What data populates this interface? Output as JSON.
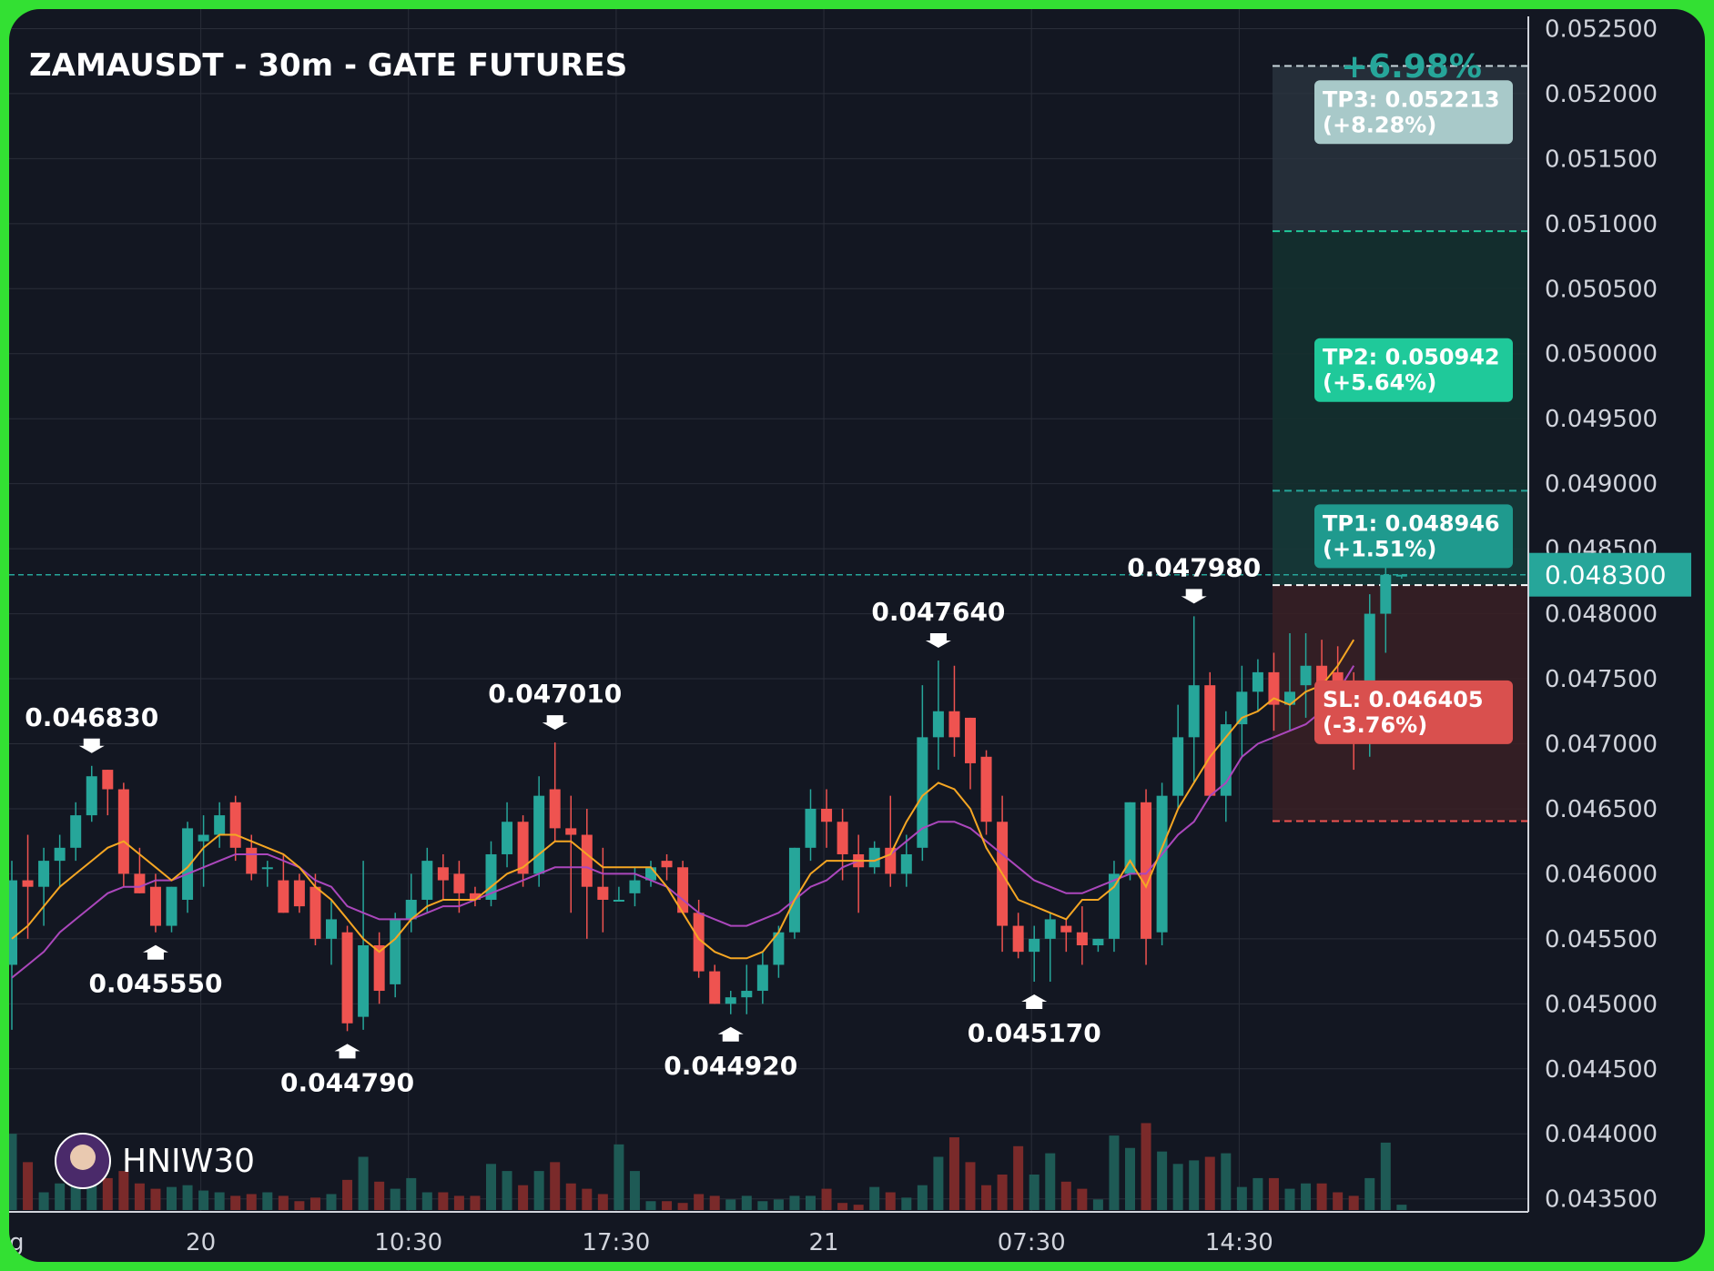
{
  "chart_data": {
    "type": "candlestick",
    "title": "ZAMAUSDT - 30m - GATE FUTURES",
    "ylim": [
      0.0434,
      0.05265
    ],
    "y_ticks": [
      "0.052500",
      "0.052000",
      "0.051500",
      "0.051000",
      "0.050500",
      "0.050000",
      "0.049500",
      "0.049000",
      "0.048500",
      "0.048000",
      "0.047500",
      "0.047000",
      "0.046500",
      "0.046000",
      "0.045500",
      "0.045000",
      "0.044500",
      "0.044000",
      "0.043500"
    ],
    "x_ticks": [
      {
        "label": "20",
        "index": 12
      },
      {
        "label": "10:30",
        "index": 25
      },
      {
        "label": "17:30",
        "index": 38
      },
      {
        "label": "21",
        "index": 51
      },
      {
        "label": "07:30",
        "index": 64
      },
      {
        "label": "14:30",
        "index": 77
      }
    ],
    "x_tick_cut_label": "g",
    "current_price": "0.048300",
    "current_price_value": 0.0483,
    "pct_change": "+6.98%",
    "watermark": "HNIW30",
    "candles": [
      {
        "o": 0.0453,
        "h": 0.0461,
        "l": 0.0448,
        "c": 0.04595,
        "v": 0.43
      },
      {
        "o": 0.04595,
        "h": 0.0463,
        "l": 0.0455,
        "c": 0.0459,
        "v": 0.27
      },
      {
        "o": 0.0459,
        "h": 0.0462,
        "l": 0.0456,
        "c": 0.0461,
        "v": 0.1
      },
      {
        "o": 0.0461,
        "h": 0.0463,
        "l": 0.0459,
        "c": 0.0462,
        "v": 0.15
      },
      {
        "o": 0.0462,
        "h": 0.04655,
        "l": 0.0461,
        "c": 0.04645,
        "v": 0.2
      },
      {
        "o": 0.04645,
        "h": 0.04683,
        "l": 0.0464,
        "c": 0.04675,
        "v": 0.22
      },
      {
        "o": 0.0468,
        "h": 0.0468,
        "l": 0.04645,
        "c": 0.04665,
        "v": 0.18
      },
      {
        "o": 0.04665,
        "h": 0.0467,
        "l": 0.0459,
        "c": 0.046,
        "v": 0.22
      },
      {
        "o": 0.046,
        "h": 0.0462,
        "l": 0.04585,
        "c": 0.04585,
        "v": 0.15
      },
      {
        "o": 0.0459,
        "h": 0.046,
        "l": 0.04555,
        "c": 0.0456,
        "v": 0.12
      },
      {
        "o": 0.0456,
        "h": 0.0459,
        "l": 0.04555,
        "c": 0.0459,
        "v": 0.13
      },
      {
        "o": 0.0458,
        "h": 0.0464,
        "l": 0.0457,
        "c": 0.04635,
        "v": 0.14
      },
      {
        "o": 0.04625,
        "h": 0.04645,
        "l": 0.0459,
        "c": 0.0463,
        "v": 0.11
      },
      {
        "o": 0.0463,
        "h": 0.04655,
        "l": 0.0462,
        "c": 0.04645,
        "v": 0.1
      },
      {
        "o": 0.04655,
        "h": 0.0466,
        "l": 0.0461,
        "c": 0.0462,
        "v": 0.08
      },
      {
        "o": 0.0462,
        "h": 0.0463,
        "l": 0.04595,
        "c": 0.046,
        "v": 0.09
      },
      {
        "o": 0.04605,
        "h": 0.0461,
        "l": 0.0459,
        "c": 0.04605,
        "v": 0.1
      },
      {
        "o": 0.04595,
        "h": 0.04615,
        "l": 0.0457,
        "c": 0.0457,
        "v": 0.08
      },
      {
        "o": 0.04595,
        "h": 0.046,
        "l": 0.0457,
        "c": 0.04575,
        "v": 0.05
      },
      {
        "o": 0.0459,
        "h": 0.046,
        "l": 0.04545,
        "c": 0.0455,
        "v": 0.07
      },
      {
        "o": 0.0455,
        "h": 0.0458,
        "l": 0.0453,
        "c": 0.04565,
        "v": 0.09
      },
      {
        "o": 0.04555,
        "h": 0.0456,
        "l": 0.04479,
        "c": 0.04485,
        "v": 0.17
      },
      {
        "o": 0.0449,
        "h": 0.0461,
        "l": 0.0448,
        "c": 0.04545,
        "v": 0.3
      },
      {
        "o": 0.04545,
        "h": 0.04555,
        "l": 0.045,
        "c": 0.0451,
        "v": 0.16
      },
      {
        "o": 0.04515,
        "h": 0.0457,
        "l": 0.04505,
        "c": 0.04565,
        "v": 0.12
      },
      {
        "o": 0.04565,
        "h": 0.046,
        "l": 0.04555,
        "c": 0.0458,
        "v": 0.18
      },
      {
        "o": 0.0458,
        "h": 0.0462,
        "l": 0.0457,
        "c": 0.0461,
        "v": 0.1
      },
      {
        "o": 0.04605,
        "h": 0.04615,
        "l": 0.0458,
        "c": 0.04595,
        "v": 0.1
      },
      {
        "o": 0.046,
        "h": 0.0461,
        "l": 0.0457,
        "c": 0.04585,
        "v": 0.08
      },
      {
        "o": 0.04585,
        "h": 0.0459,
        "l": 0.04575,
        "c": 0.0458,
        "v": 0.08
      },
      {
        "o": 0.0458,
        "h": 0.04625,
        "l": 0.04575,
        "c": 0.04615,
        "v": 0.26
      },
      {
        "o": 0.04615,
        "h": 0.04655,
        "l": 0.04605,
        "c": 0.0464,
        "v": 0.22
      },
      {
        "o": 0.0464,
        "h": 0.04645,
        "l": 0.0459,
        "c": 0.046,
        "v": 0.14
      },
      {
        "o": 0.046,
        "h": 0.04675,
        "l": 0.0459,
        "c": 0.0466,
        "v": 0.22
      },
      {
        "o": 0.04665,
        "h": 0.04701,
        "l": 0.04625,
        "c": 0.04635,
        "v": 0.27
      },
      {
        "o": 0.04635,
        "h": 0.0466,
        "l": 0.0457,
        "c": 0.0463,
        "v": 0.15
      },
      {
        "o": 0.0463,
        "h": 0.0465,
        "l": 0.0455,
        "c": 0.0459,
        "v": 0.12
      },
      {
        "o": 0.0459,
        "h": 0.0462,
        "l": 0.04555,
        "c": 0.0458,
        "v": 0.09
      },
      {
        "o": 0.0458,
        "h": 0.0459,
        "l": 0.0458,
        "c": 0.0458,
        "v": 0.37
      },
      {
        "o": 0.04585,
        "h": 0.04605,
        "l": 0.04575,
        "c": 0.04595,
        "v": 0.22
      },
      {
        "o": 0.04595,
        "h": 0.0461,
        "l": 0.0459,
        "c": 0.04605,
        "v": 0.05
      },
      {
        "o": 0.0461,
        "h": 0.04615,
        "l": 0.04595,
        "c": 0.04605,
        "v": 0.05
      },
      {
        "o": 0.04605,
        "h": 0.0461,
        "l": 0.0457,
        "c": 0.0457,
        "v": 0.04
      },
      {
        "o": 0.0457,
        "h": 0.0458,
        "l": 0.0452,
        "c": 0.04525,
        "v": 0.09
      },
      {
        "o": 0.04525,
        "h": 0.0453,
        "l": 0.045,
        "c": 0.045,
        "v": 0.08
      },
      {
        "o": 0.045,
        "h": 0.0451,
        "l": 0.04492,
        "c": 0.04505,
        "v": 0.06
      },
      {
        "o": 0.04505,
        "h": 0.0453,
        "l": 0.04492,
        "c": 0.0451,
        "v": 0.08
      },
      {
        "o": 0.0451,
        "h": 0.0454,
        "l": 0.045,
        "c": 0.0453,
        "v": 0.05
      },
      {
        "o": 0.0453,
        "h": 0.0456,
        "l": 0.0452,
        "c": 0.04555,
        "v": 0.06
      },
      {
        "o": 0.04555,
        "h": 0.0462,
        "l": 0.0455,
        "c": 0.0462,
        "v": 0.08
      },
      {
        "o": 0.0462,
        "h": 0.04665,
        "l": 0.0461,
        "c": 0.0465,
        "v": 0.08
      },
      {
        "o": 0.0465,
        "h": 0.04665,
        "l": 0.0462,
        "c": 0.0464,
        "v": 0.12
      },
      {
        "o": 0.0464,
        "h": 0.0465,
        "l": 0.04595,
        "c": 0.04615,
        "v": 0.04
      },
      {
        "o": 0.04615,
        "h": 0.0463,
        "l": 0.0457,
        "c": 0.04605,
        "v": 0.03
      },
      {
        "o": 0.04605,
        "h": 0.04625,
        "l": 0.046,
        "c": 0.0462,
        "v": 0.13
      },
      {
        "o": 0.0462,
        "h": 0.0466,
        "l": 0.0459,
        "c": 0.046,
        "v": 0.1
      },
      {
        "o": 0.046,
        "h": 0.0463,
        "l": 0.0459,
        "c": 0.04615,
        "v": 0.07
      },
      {
        "o": 0.0462,
        "h": 0.04745,
        "l": 0.0461,
        "c": 0.04705,
        "v": 0.14
      },
      {
        "o": 0.04705,
        "h": 0.04764,
        "l": 0.0468,
        "c": 0.04725,
        "v": 0.3
      },
      {
        "o": 0.04725,
        "h": 0.0476,
        "l": 0.0469,
        "c": 0.04705,
        "v": 0.41
      },
      {
        "o": 0.0472,
        "h": 0.0472,
        "l": 0.04665,
        "c": 0.04685,
        "v": 0.27
      },
      {
        "o": 0.0469,
        "h": 0.04695,
        "l": 0.0463,
        "c": 0.0464,
        "v": 0.14
      },
      {
        "o": 0.0464,
        "h": 0.0466,
        "l": 0.0454,
        "c": 0.0456,
        "v": 0.2
      },
      {
        "o": 0.0456,
        "h": 0.0457,
        "l": 0.04535,
        "c": 0.0454,
        "v": 0.36
      },
      {
        "o": 0.0454,
        "h": 0.0456,
        "l": 0.04517,
        "c": 0.0455,
        "v": 0.2
      },
      {
        "o": 0.0455,
        "h": 0.0457,
        "l": 0.04517,
        "c": 0.04565,
        "v": 0.32
      },
      {
        "o": 0.0456,
        "h": 0.04565,
        "l": 0.0454,
        "c": 0.04555,
        "v": 0.16
      },
      {
        "o": 0.04555,
        "h": 0.04575,
        "l": 0.0453,
        "c": 0.04545,
        "v": 0.12
      },
      {
        "o": 0.04545,
        "h": 0.0455,
        "l": 0.0454,
        "c": 0.0455,
        "v": 0.06
      },
      {
        "o": 0.0455,
        "h": 0.0461,
        "l": 0.0454,
        "c": 0.046,
        "v": 0.42
      },
      {
        "o": 0.046,
        "h": 0.04655,
        "l": 0.04595,
        "c": 0.04655,
        "v": 0.35
      },
      {
        "o": 0.04655,
        "h": 0.04665,
        "l": 0.0453,
        "c": 0.0455,
        "v": 0.49
      },
      {
        "o": 0.04555,
        "h": 0.0467,
        "l": 0.04545,
        "c": 0.0466,
        "v": 0.33
      },
      {
        "o": 0.0466,
        "h": 0.0473,
        "l": 0.0465,
        "c": 0.04705,
        "v": 0.26
      },
      {
        "o": 0.04705,
        "h": 0.04798,
        "l": 0.0467,
        "c": 0.04745,
        "v": 0.28
      },
      {
        "o": 0.04745,
        "h": 0.04755,
        "l": 0.0466,
        "c": 0.0466,
        "v": 0.3
      },
      {
        "o": 0.0466,
        "h": 0.04725,
        "l": 0.0464,
        "c": 0.04715,
        "v": 0.32
      },
      {
        "o": 0.04715,
        "h": 0.0476,
        "l": 0.0469,
        "c": 0.0474,
        "v": 0.13
      }
    ],
    "extra_candles": [
      {
        "o": 0.0474,
        "h": 0.04765,
        "l": 0.04725,
        "c": 0.04755,
        "v": 0.18
      },
      {
        "o": 0.04755,
        "h": 0.0477,
        "l": 0.0471,
        "c": 0.0473,
        "v": 0.18
      },
      {
        "o": 0.0473,
        "h": 0.04785,
        "l": 0.0471,
        "c": 0.0474,
        "v": 0.12
      },
      {
        "o": 0.04745,
        "h": 0.04785,
        "l": 0.0472,
        "c": 0.0476,
        "v": 0.15
      },
      {
        "o": 0.0476,
        "h": 0.0478,
        "l": 0.0471,
        "c": 0.04715,
        "v": 0.15
      },
      {
        "o": 0.04755,
        "h": 0.04775,
        "l": 0.0472,
        "c": 0.0474,
        "v": 0.1
      },
      {
        "o": 0.0474,
        "h": 0.04755,
        "l": 0.0468,
        "c": 0.04705,
        "v": 0.08
      },
      {
        "o": 0.04705,
        "h": 0.04815,
        "l": 0.0469,
        "c": 0.048,
        "v": 0.18
      },
      {
        "o": 0.048,
        "h": 0.04865,
        "l": 0.0477,
        "c": 0.0483,
        "v": 0.38
      },
      {
        "o": 0.0483,
        "h": 0.0483,
        "l": 0.04827,
        "c": 0.0483,
        "v": 0.03
      }
    ],
    "ema_fast": [
      0.0455,
      0.0456,
      0.04575,
      0.0459,
      0.046,
      0.0461,
      0.0462,
      0.04625,
      0.04615,
      0.04605,
      0.04595,
      0.04605,
      0.0462,
      0.0463,
      0.0463,
      0.04625,
      0.0462,
      0.04615,
      0.04605,
      0.0459,
      0.0458,
      0.04565,
      0.0455,
      0.0454,
      0.0455,
      0.04565,
      0.04575,
      0.0458,
      0.0458,
      0.0458,
      0.0459,
      0.046,
      0.04605,
      0.04615,
      0.04625,
      0.04625,
      0.04615,
      0.04605,
      0.04605,
      0.04605,
      0.04605,
      0.0459,
      0.0457,
      0.0455,
      0.0454,
      0.04535,
      0.04535,
      0.0454,
      0.04555,
      0.0458,
      0.046,
      0.0461,
      0.0461,
      0.0461,
      0.0461,
      0.04615,
      0.0464,
      0.0466,
      0.0467,
      0.04665,
      0.0465,
      0.0462,
      0.046,
      0.0458,
      0.04575,
      0.0457,
      0.04565,
      0.0458,
      0.0458,
      0.0459,
      0.0461,
      0.0459,
      0.0462,
      0.0465,
      0.0467,
      0.0469,
      0.04705,
      0.0472,
      0.04725,
      0.04735,
      0.0473,
      0.0474,
      0.04745,
      0.0476,
      0.0478
    ],
    "ema_slow": [
      0.0452,
      0.0453,
      0.0454,
      0.04555,
      0.04565,
      0.04575,
      0.04585,
      0.0459,
      0.0459,
      0.04595,
      0.04595,
      0.046,
      0.04605,
      0.0461,
      0.04615,
      0.04615,
      0.04615,
      0.0461,
      0.04605,
      0.04595,
      0.0459,
      0.04575,
      0.0457,
      0.04565,
      0.04565,
      0.04565,
      0.0457,
      0.04575,
      0.04575,
      0.0458,
      0.04585,
      0.0459,
      0.04595,
      0.046,
      0.04605,
      0.04605,
      0.04605,
      0.046,
      0.046,
      0.046,
      0.04595,
      0.0459,
      0.0458,
      0.0457,
      0.04565,
      0.0456,
      0.0456,
      0.04565,
      0.0457,
      0.0458,
      0.0459,
      0.04595,
      0.04605,
      0.0461,
      0.0461,
      0.04615,
      0.04625,
      0.04635,
      0.0464,
      0.0464,
      0.04635,
      0.04625,
      0.04615,
      0.04605,
      0.04595,
      0.0459,
      0.04585,
      0.04585,
      0.0459,
      0.04595,
      0.046,
      0.046,
      0.04615,
      0.0463,
      0.0464,
      0.0466,
      0.0467,
      0.0469,
      0.047,
      0.04705,
      0.0471,
      0.04715,
      0.04725,
      0.0474,
      0.0476
    ],
    "peaks": [
      {
        "label": "0.046830",
        "index": 5,
        "type": "high"
      },
      {
        "label": "0.045550",
        "index": 9,
        "type": "low"
      },
      {
        "label": "0.044790",
        "index": 21,
        "type": "low"
      },
      {
        "label": "0.047010",
        "index": 34,
        "type": "high"
      },
      {
        "label": "0.044920",
        "index": 45,
        "type": "low"
      },
      {
        "label": "0.047640",
        "index": 58,
        "type": "high"
      },
      {
        "label": "0.045170",
        "index": 64,
        "type": "low"
      },
      {
        "label": "0.047980",
        "index": 74,
        "type": "high"
      }
    ],
    "targets": [
      {
        "label": "TP3: 0.052213",
        "sub": "(+8.28%)",
        "value": 0.052213,
        "color": "#a8c9c9"
      },
      {
        "label": "TP2: 0.050942",
        "sub": "(+5.64%)",
        "value": 0.050942,
        "color": "#1fc99a"
      },
      {
        "label": "TP1: 0.048946",
        "sub": "(+1.51%)",
        "value": 0.048946,
        "color": "#1f9a8e"
      },
      {
        "label": "SL: 0.046405",
        "sub": "(-3.76%)",
        "value": 0.046405,
        "color": "#d9504e"
      }
    ],
    "entry_value": 0.04822,
    "colors": {
      "up": "#26a69a",
      "down": "#ef5350",
      "ema_fast": "#f5a623",
      "ema_slow": "#ab47bc",
      "background": "#131722",
      "grid": "#2a2e39"
    }
  }
}
